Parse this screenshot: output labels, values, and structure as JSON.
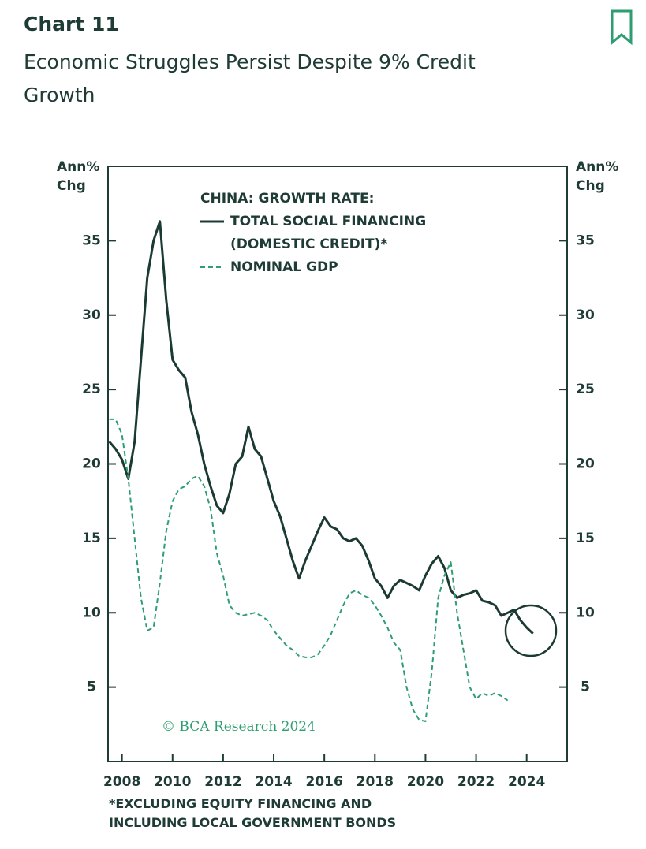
{
  "header": {
    "title": "Chart 11",
    "subtitle": "Economic Struggles Persist Despite 9% Credit Growth"
  },
  "chart_data": {
    "type": "line",
    "legend_title": "CHINA: GROWTH RATE:",
    "y_label": "Ann% Chg",
    "y2_label": "Ann% Chg",
    "watermark": "© BCA Research 2024",
    "footnote": "*EXCLUDING EQUITY FINANCING AND INCLUDING LOCAL GOVERNMENT BONDS",
    "x": [
      2007.5,
      2007.75,
      2008,
      2008.25,
      2008.5,
      2008.75,
      2009,
      2009.25,
      2009.5,
      2009.75,
      2010,
      2010.25,
      2010.5,
      2010.75,
      2011,
      2011.25,
      2011.5,
      2011.75,
      2012,
      2012.25,
      2012.5,
      2012.75,
      2013,
      2013.25,
      2013.5,
      2013.75,
      2014,
      2014.25,
      2014.5,
      2014.75,
      2015,
      2015.25,
      2015.5,
      2015.75,
      2016,
      2016.25,
      2016.5,
      2016.75,
      2017,
      2017.25,
      2017.5,
      2017.75,
      2018,
      2018.25,
      2018.5,
      2018.75,
      2019,
      2019.25,
      2019.5,
      2019.75,
      2020,
      2020.25,
      2020.5,
      2020.75,
      2021,
      2021.25,
      2021.5,
      2021.75,
      2022,
      2022.25,
      2022.5,
      2022.75,
      2023,
      2023.25,
      2023.5,
      2023.75,
      2024,
      2024.25
    ],
    "series": [
      {
        "name": "TOTAL SOCIAL FINANCING (DOMESTIC CREDIT)*",
        "color": "#1c3a34",
        "dash": false,
        "values": [
          21.5,
          21,
          20.3,
          19,
          21.5,
          27,
          32.5,
          35,
          36.3,
          31,
          27,
          26.3,
          25.8,
          23.5,
          22,
          20,
          18.5,
          17.2,
          16.7,
          18,
          20,
          20.5,
          22.5,
          21,
          20.5,
          19,
          17.5,
          16.5,
          15,
          13.5,
          12.3,
          13.5,
          14.5,
          15.5,
          16.4,
          15.8,
          15.6,
          15,
          14.8,
          15,
          14.5,
          13.5,
          12.3,
          11.8,
          11,
          11.8,
          12.2,
          12,
          11.8,
          11.5,
          12.5,
          13.3,
          13.8,
          13,
          11.5,
          11,
          11.2,
          11.3,
          11.5,
          10.8,
          10.7,
          10.5,
          9.8,
          10,
          10.2,
          9.5,
          9,
          8.6
        ]
      },
      {
        "name": "NOMINAL GDP",
        "color": "#2e9e72",
        "dash": true,
        "values": [
          23,
          23,
          22,
          19,
          15,
          11,
          8.8,
          9,
          12,
          15.5,
          17.5,
          18.3,
          18.5,
          19,
          19.2,
          18.5,
          17,
          14,
          12.5,
          10.5,
          10,
          9.8,
          9.9,
          10,
          9.8,
          9.5,
          8.8,
          8.3,
          7.8,
          7.5,
          7.1,
          7,
          7,
          7.2,
          7.8,
          8.5,
          9.5,
          10.5,
          11.3,
          11.5,
          11.2,
          11,
          10.5,
          9.8,
          9,
          8,
          7.5,
          5,
          3.5,
          2.8,
          2.7,
          6,
          11,
          12.5,
          13.4,
          10,
          7.5,
          5,
          4.2,
          4.6,
          4.4,
          4.6,
          4.4,
          4.1,
          null,
          null,
          null,
          null
        ]
      }
    ],
    "xlim": [
      2007.45,
      2025.6
    ],
    "xticks": [
      2008,
      2010,
      2012,
      2014,
      2016,
      2018,
      2020,
      2022,
      2024
    ],
    "ylim": [
      0,
      40
    ],
    "yticks": [
      5,
      10,
      15,
      20,
      25,
      30,
      35
    ],
    "y2lim": [
      0,
      40
    ],
    "y2ticks": [
      5,
      10,
      15,
      20,
      25,
      30,
      35
    ]
  }
}
